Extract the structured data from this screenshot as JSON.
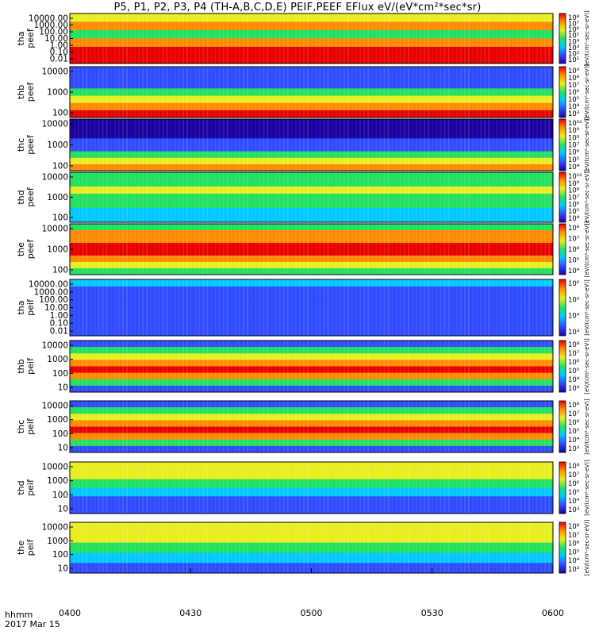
{
  "title": "P5, P1, P2, P3, P4 (TH-A,B,C,D,E) PEIF,PEEF EFlux eV/(eV*cm²*sec*sr)",
  "colorbar_units_label": "[eV/(cm²-sec-sr-eV)]",
  "time_label": "hhmm",
  "date_label": "2017 Mar 15",
  "chart_data": {
    "type": "heatmap",
    "x_axis": {
      "ticks": [
        "0400",
        "0430",
        "0500",
        "0530",
        "0600"
      ],
      "range": [
        "0400",
        "0600"
      ]
    },
    "panels": [
      {
        "probe": "tha",
        "product": "peef",
        "ylabel": "tha\npeef",
        "yticks": [
          "10000.00",
          "1000.00",
          "100.00",
          "10.00",
          "1.00",
          "0.10",
          "0.01"
        ],
        "cbar": [
          "10⁸",
          "10⁷",
          "10⁶",
          "10⁵",
          "10⁴",
          "10³",
          "10²",
          "10¹"
        ],
        "cbar_label": "[eV/(cm²-sec-sr-eV)]"
      },
      {
        "probe": "thb",
        "product": "peef",
        "ylabel": "thb\npeef",
        "yticks": [
          "10000",
          "1000",
          "100"
        ],
        "cbar": [
          "10⁹",
          "10⁸",
          "10⁷",
          "10⁶",
          "10⁵",
          "10⁴",
          "10³"
        ],
        "cbar_label": "[eV/(cm²-sec-sr-eV)]"
      },
      {
        "probe": "thc",
        "product": "peef",
        "ylabel": "thc\npeef",
        "yticks": [
          "10000",
          "1000",
          "100"
        ],
        "cbar": [
          "10¹⁰",
          "10⁹",
          "10⁸",
          "10⁷",
          "10⁶",
          "10⁵",
          "10⁴"
        ],
        "cbar_label": "[eV/(cm²-sec-sr-eV)]"
      },
      {
        "probe": "thd",
        "product": "peef",
        "ylabel": "thd\npeef",
        "yticks": [
          "10000",
          "1000",
          "100"
        ],
        "cbar": [
          "10¹⁰",
          "10⁹",
          "10⁸",
          "10⁷",
          "10⁶",
          "10⁵",
          "10⁴"
        ],
        "cbar_label": "[eV/(cm²-sec-sr-eV)]"
      },
      {
        "probe": "the",
        "product": "peef",
        "ylabel": "the\npeef",
        "yticks": [
          "10000",
          "1000",
          "100"
        ],
        "cbar": [
          "10⁸",
          "10⁷",
          "10⁶",
          "10⁵",
          "10⁴"
        ],
        "cbar_label": "[eV/(cm²-sec-sr-eV)]"
      },
      {
        "probe": "tha",
        "product": "peif",
        "ylabel": "tha\npeif",
        "yticks": [
          "10000.00",
          "1000.00",
          "100.00",
          "10.00",
          "1.00",
          "0.10",
          "0.01"
        ],
        "cbar": [
          "10⁶",
          "10⁵",
          "10⁴",
          "10³"
        ],
        "cbar_label": "[eV/(cm²-sec-sr-eV)]"
      },
      {
        "probe": "thb",
        "product": "peif",
        "ylabel": "thb\npeif",
        "yticks": [
          "10000",
          "1000",
          "100",
          "10"
        ],
        "cbar": [
          "10⁸",
          "10⁷",
          "10⁶",
          "10⁵",
          "10⁴",
          "10³"
        ],
        "cbar_label": "[eV/(cm²-sec-sr-eV)]"
      },
      {
        "probe": "thc",
        "product": "peif",
        "ylabel": "thc\npeif",
        "yticks": [
          "10000",
          "1000",
          "100",
          "10"
        ],
        "cbar": [
          "10⁸",
          "10⁷",
          "10⁶",
          "10⁵",
          "10⁴",
          "10³"
        ],
        "cbar_label": "[eV/(cm²-sec-sr-eV)]"
      },
      {
        "probe": "thd",
        "product": "peif",
        "ylabel": "thd\npeif",
        "yticks": [
          "10000",
          "1000",
          "100",
          "10"
        ],
        "cbar": [
          "10⁸",
          "10⁷",
          "10⁶",
          "10⁵",
          "10⁴",
          "10³"
        ],
        "cbar_label": "[eV/(cm²-sec-sr-eV)]"
      },
      {
        "probe": "the",
        "product": "peif",
        "ylabel": "the\npeif",
        "yticks": [
          "10000",
          "1000",
          "100",
          "10"
        ],
        "cbar": [
          "10⁸",
          "10⁷",
          "10⁶",
          "10⁵",
          "10⁴",
          "10³"
        ],
        "cbar_label": "[eV/(cm²-sec-sr-eV)]"
      }
    ],
    "colormap": [
      "#1a00a0",
      "#2f4bff",
      "#00c8ff",
      "#22e060",
      "#e8ee20",
      "#ff8a00",
      "#e80000"
    ],
    "grid": false,
    "legend": "colorbars-right"
  }
}
